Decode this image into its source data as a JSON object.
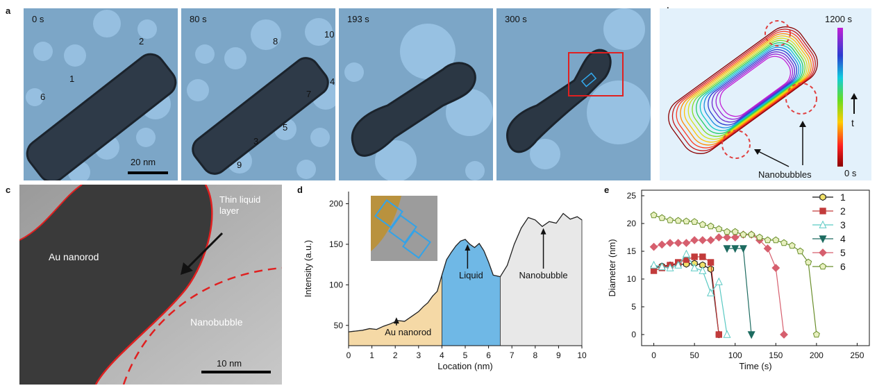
{
  "panel_letters": {
    "a": "a",
    "b": "b",
    "c": "c",
    "d": "d",
    "e": "e"
  },
  "panel_a": {
    "frames": [
      {
        "time": "0 s",
        "particle_labels": [
          "1",
          "2",
          "6"
        ]
      },
      {
        "time": "80 s",
        "particle_labels": [
          "8",
          "10",
          "4",
          "7",
          "3",
          "5",
          "9"
        ]
      },
      {
        "time": "193 s",
        "particle_labels": []
      },
      {
        "time": "300 s",
        "particle_labels": []
      }
    ],
    "scale_bar": "20 nm"
  },
  "panel_b": {
    "colorbar_top": "1200 s",
    "colorbar_bottom": "0 s",
    "colorbar_axis": "t",
    "annotation": "Nanobubbles"
  },
  "panel_c": {
    "labels": {
      "rod": "Au nanorod",
      "liquid": "Thin liquid layer",
      "bubble": "Nanobubble"
    },
    "scale_bar": "10 nm"
  },
  "chart_data": [
    {
      "type": "area",
      "panel": "d",
      "xlabel": "Location (nm)",
      "ylabel": "Intensity (a.u.)",
      "xlim": [
        0,
        10
      ],
      "ylim": [
        25,
        215
      ],
      "xticks": [
        0,
        1,
        2,
        3,
        4,
        5,
        6,
        7,
        8,
        9,
        10
      ],
      "yticks": [
        50,
        100,
        150,
        200
      ],
      "regions": [
        {
          "label": "Au nanorod",
          "from": 0,
          "to": 4,
          "color": "#f5d9a6"
        },
        {
          "label": "Liquid",
          "from": 4,
          "to": 6.5,
          "color": "#6fb8e6"
        },
        {
          "label": "Nanobubble",
          "from": 6.5,
          "to": 10,
          "color": "#e8e8e8"
        }
      ],
      "x": [
        0,
        0.3,
        0.6,
        0.9,
        1.2,
        1.5,
        1.8,
        2.1,
        2.4,
        2.7,
        3.0,
        3.2,
        3.4,
        3.6,
        3.8,
        4.0,
        4.2,
        4.4,
        4.6,
        4.8,
        5.0,
        5.2,
        5.4,
        5.6,
        5.8,
        6.0,
        6.2,
        6.5,
        6.8,
        7.1,
        7.4,
        7.7,
        8.0,
        8.3,
        8.6,
        8.9,
        9.2,
        9.5,
        9.8,
        10.0
      ],
      "y": [
        42,
        43,
        44,
        46,
        45,
        49,
        52,
        56,
        55,
        61,
        67,
        73,
        78,
        86,
        92,
        112,
        131,
        140,
        148,
        154,
        156,
        150,
        146,
        151,
        142,
        128,
        112,
        110,
        124,
        150,
        170,
        183,
        180,
        172,
        178,
        176,
        188,
        181,
        184,
        180
      ]
    },
    {
      "type": "line",
      "panel": "e",
      "xlabel": "Time (s)",
      "ylabel": "Diameter (nm)",
      "xlim": [
        -15,
        265
      ],
      "ylim": [
        -2,
        26
      ],
      "xticks": [
        0,
        50,
        100,
        150,
        200,
        250
      ],
      "yticks": [
        0,
        5,
        10,
        15,
        20,
        25
      ],
      "legend_position": "top-right",
      "series": [
        {
          "name": "1",
          "color": "#111111",
          "marker": "hexagon",
          "fill": "#f2e26a",
          "x": [
            0,
            10,
            20,
            30,
            40,
            50,
            60,
            70,
            80
          ],
          "y": [
            12,
            12.3,
            12.5,
            12.6,
            12.7,
            12.8,
            12.5,
            11.8,
            0
          ]
        },
        {
          "name": "2",
          "color": "#c23b3b",
          "marker": "square",
          "fill": "#c23b3b",
          "x": [
            0,
            10,
            20,
            30,
            40,
            50,
            60,
            70,
            80
          ],
          "y": [
            11.5,
            12,
            12.5,
            13,
            13.5,
            14,
            14,
            13,
            0
          ]
        },
        {
          "name": "3",
          "color": "#59c9c3",
          "marker": "triangle-up",
          "fill": "#ffffff",
          "x": [
            0,
            10,
            20,
            30,
            40,
            50,
            60,
            70,
            80,
            90
          ],
          "y": [
            12.5,
            12.2,
            12,
            12.5,
            14.5,
            12,
            11.5,
            7.5,
            9.5,
            0
          ]
        },
        {
          "name": "4",
          "color": "#1d6b60",
          "marker": "triangle-down",
          "fill": "#1d6b60",
          "x": [
            90,
            100,
            110,
            120
          ],
          "y": [
            15.5,
            15.5,
            15.5,
            0
          ]
        },
        {
          "name": "5",
          "color": "#d65f6e",
          "marker": "diamond",
          "fill": "#d65f6e",
          "x": [
            0,
            10,
            20,
            30,
            40,
            50,
            60,
            70,
            80,
            90,
            100,
            110,
            120,
            130,
            140,
            150,
            160
          ],
          "y": [
            15.8,
            16.2,
            16.5,
            16.5,
            16.5,
            17,
            17,
            17,
            17.5,
            17.5,
            17.5,
            18,
            18,
            17,
            15.5,
            12,
            0
          ]
        },
        {
          "name": "6",
          "color": "#6a8f2c",
          "marker": "pentagon",
          "fill": "#e8f0c0",
          "x": [
            0,
            10,
            20,
            30,
            40,
            50,
            60,
            70,
            80,
            90,
            100,
            110,
            120,
            130,
            140,
            150,
            160,
            170,
            180,
            190,
            200
          ],
          "y": [
            21.5,
            21,
            20.6,
            20.5,
            20.4,
            20.3,
            19.8,
            19.5,
            19,
            18.5,
            18.5,
            18,
            18,
            17.5,
            17,
            17,
            16.5,
            16,
            15,
            13,
            0
          ]
        }
      ]
    }
  ]
}
